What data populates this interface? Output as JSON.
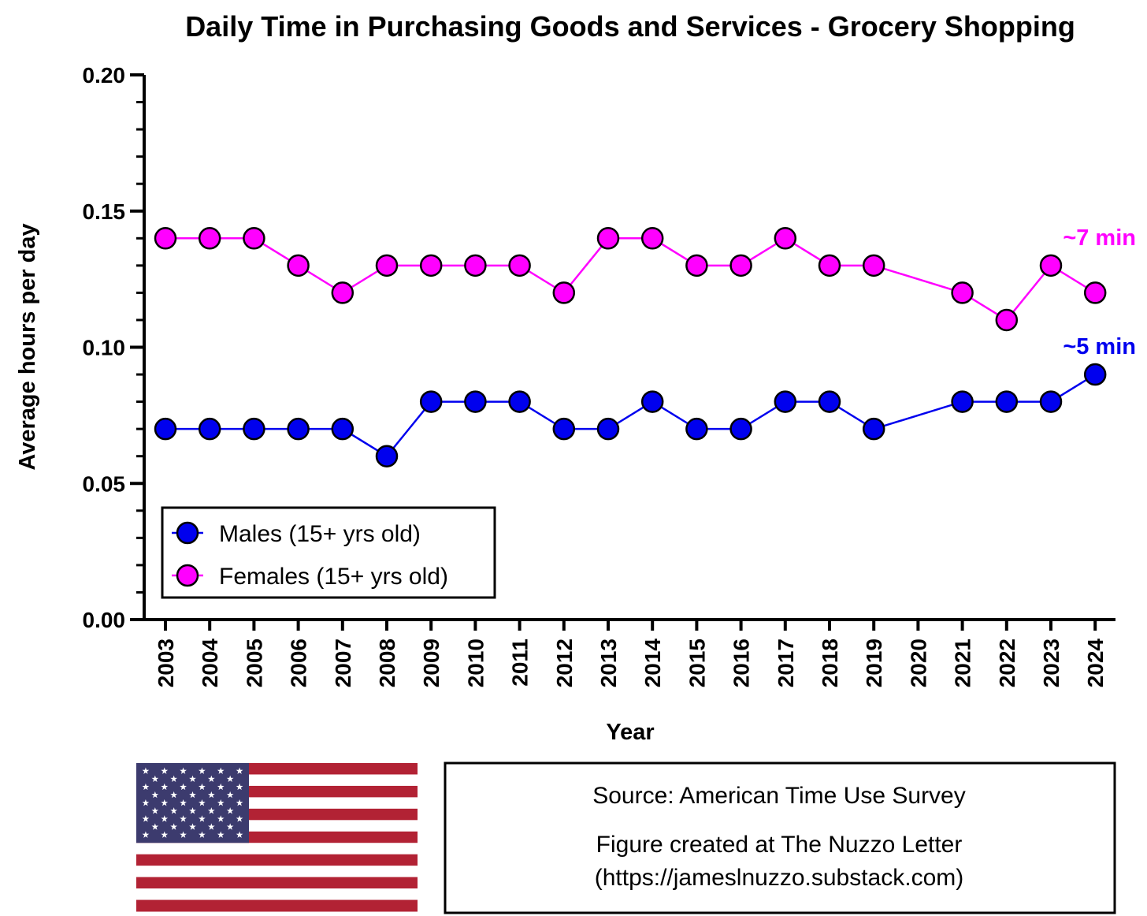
{
  "chart_data": {
    "type": "line",
    "title": "Daily Time in Purchasing Goods and Services - Grocery Shopping",
    "xlabel": "Year",
    "ylabel": "Average hours per day",
    "ylim": [
      0,
      0.2
    ],
    "y_ticks": [
      "0.00",
      "0.05",
      "0.10",
      "0.15",
      "0.20"
    ],
    "categories": [
      "2003",
      "2004",
      "2005",
      "2006",
      "2007",
      "2008",
      "2009",
      "2010",
      "2011",
      "2012",
      "2013",
      "2014",
      "2015",
      "2016",
      "2017",
      "2018",
      "2019",
      "2020",
      "2021",
      "2022",
      "2023",
      "2024"
    ],
    "series": [
      {
        "name": "Males (15+ yrs old)",
        "color": "#0000ee",
        "values": [
          0.07,
          0.07,
          0.07,
          0.07,
          0.07,
          0.06,
          0.08,
          0.08,
          0.08,
          0.07,
          0.07,
          0.08,
          0.07,
          0.07,
          0.08,
          0.08,
          0.07,
          null,
          0.08,
          0.08,
          0.08,
          0.09
        ]
      },
      {
        "name": "Females (15+ yrs old)",
        "color": "#ff00ff",
        "values": [
          0.14,
          0.14,
          0.14,
          0.13,
          0.12,
          0.13,
          0.13,
          0.13,
          0.13,
          0.12,
          0.14,
          0.14,
          0.13,
          0.13,
          0.14,
          0.13,
          0.13,
          null,
          0.12,
          0.11,
          0.13,
          0.12
        ]
      }
    ],
    "annotations": [
      {
        "text": "~7 min",
        "color": "#ff00ff",
        "series": 1
      },
      {
        "text": "~5 min",
        "color": "#0000ee",
        "series": 0
      }
    ],
    "legend_position": "bottom-left",
    "grid": false
  },
  "footer": {
    "source_line": "Source: American Time Use Survey",
    "credit_line1": "Figure created at The Nuzzo Letter",
    "credit_line2": "(https://jameslnuzzo.substack.com)",
    "flag_icon": "us-flag-icon",
    "flag_colors": {
      "red": "#b22234",
      "white": "#ffffff",
      "blue": "#3c3b6e"
    }
  }
}
